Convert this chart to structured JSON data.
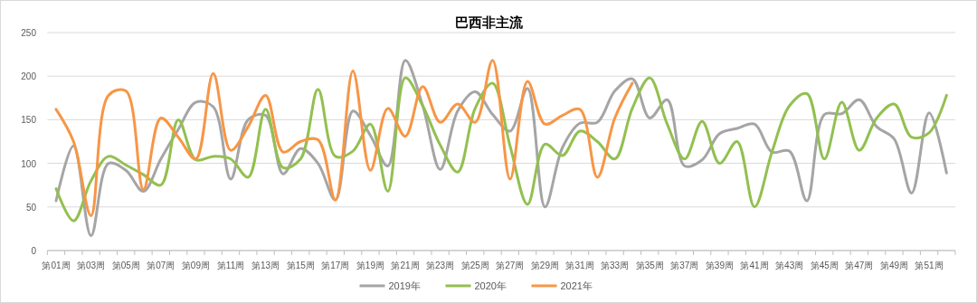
{
  "chart_data": {
    "type": "line",
    "title": "巴西非主流",
    "categories": [
      "第01周",
      null,
      "第03周",
      null,
      "第05周",
      null,
      "第07周",
      null,
      "第09周",
      null,
      "第11周",
      null,
      "第13周",
      null,
      "第15周",
      null,
      "第17周",
      null,
      "第19周",
      null,
      "第21周",
      null,
      "第23周",
      null,
      "第25周",
      null,
      "第27周",
      null,
      "第29周",
      null,
      "第31周",
      null,
      "第33周",
      null,
      "第35周",
      null,
      "第37周",
      null,
      "第39周",
      null,
      "第41周",
      null,
      "第43周",
      null,
      "第45周",
      null,
      "第47周",
      null,
      "第49周",
      null,
      "第51周",
      null
    ],
    "series": [
      {
        "name": "2019年",
        "color": "#a5a5a5",
        "values": [
          57,
          120,
          17,
          100,
          92,
          68,
          105,
          139,
          170,
          165,
          82,
          150,
          155,
          88,
          117,
          100,
          58,
          160,
          132,
          97,
          218,
          166,
          93,
          160,
          182,
          156,
          137,
          186,
          50,
          118,
          146,
          147,
          183,
          197,
          152,
          173,
          97,
          104,
          134,
          140,
          145,
          113,
          114,
          57,
          156,
          157,
          173,
          142,
          128,
          66,
          158,
          89
        ]
      },
      {
        "name": "2020年",
        "color": "#92c050",
        "values": [
          71,
          34,
          80,
          108,
          98,
          87,
          75,
          150,
          104,
          108,
          105,
          84,
          162,
          95,
          105,
          185,
          108,
          114,
          145,
          68,
          198,
          166,
          121,
          90,
          163,
          192,
          120,
          53,
          122,
          109,
          137,
          125,
          105,
          163,
          198,
          145,
          105,
          148,
          100,
          125,
          50,
          113,
          166,
          180,
          105,
          170,
          115,
          152,
          168,
          130,
          135,
          178
        ]
      },
      {
        "name": "2021年",
        "color": "#f79646",
        "values": [
          162,
          125,
          40,
          178,
          183,
          70,
          152,
          130,
          105,
          203,
          115,
          142,
          178,
          113,
          125,
          127,
          58,
          206,
          92,
          163,
          131,
          188,
          147,
          168,
          147,
          218,
          82,
          194,
          145,
          155,
          162,
          84,
          152,
          192,
          null,
          null,
          null,
          null,
          null,
          null,
          null,
          null,
          null,
          null,
          null,
          null,
          null,
          null,
          null,
          null,
          null,
          null
        ]
      }
    ],
    "ylim": [
      0,
      250
    ],
    "yticks": [
      0,
      50,
      100,
      150,
      200,
      250
    ],
    "grid": "y",
    "legend": "bottom"
  }
}
